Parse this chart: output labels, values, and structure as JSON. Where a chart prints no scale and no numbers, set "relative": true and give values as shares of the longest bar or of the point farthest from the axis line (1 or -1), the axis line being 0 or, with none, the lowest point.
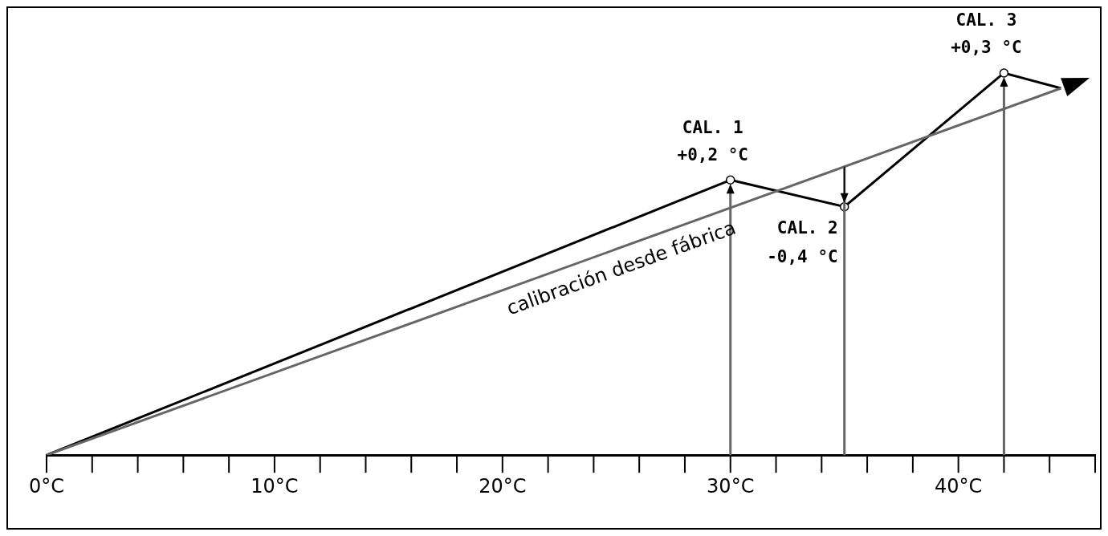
{
  "chart_data": {
    "type": "line",
    "relative": true,
    "xlim": [
      0,
      46
    ],
    "xticks": [
      {
        "value": 0,
        "label": "0°C"
      },
      {
        "value": 10,
        "label": "10°C"
      },
      {
        "value": 20,
        "label": "20°C"
      },
      {
        "value": 30,
        "label": "30°C"
      },
      {
        "value": 40,
        "label": "40°C"
      }
    ],
    "grid": false,
    "legend": false,
    "series": [
      {
        "color": "#666666",
        "x": [
          0,
          44.5
        ],
        "values": [
          0,
          0.96
        ],
        "marker": "none"
      },
      {
        "color": "#000000",
        "x": [
          0,
          30,
          35,
          42,
          44.5
        ],
        "values": [
          0,
          0.72,
          0.65,
          1,
          0.96
        ],
        "marker": "circle"
      }
    ],
    "ref_lines": [
      {
        "axis": "x",
        "value": 30,
        "color": "#666666"
      },
      {
        "axis": "x",
        "value": 35,
        "color": "#666666"
      },
      {
        "axis": "x",
        "value": 42,
        "color": "#666666"
      }
    ],
    "annotations": [
      {
        "text": "CAL. 1",
        "x": 30,
        "y": 0.72
      },
      {
        "text": "+0,2 °C",
        "x": 30,
        "y": 0.72
      },
      {
        "text": "CAL. 2",
        "x": 35,
        "y": 0.65
      },
      {
        "text": "-0,4 °C",
        "x": 35,
        "y": 0.65
      },
      {
        "text": "CAL. 3",
        "x": 42,
        "y": 1
      },
      {
        "text": "+0,3 °C",
        "x": 42,
        "y": 1
      },
      "calibración desde fábrica"
    ]
  }
}
